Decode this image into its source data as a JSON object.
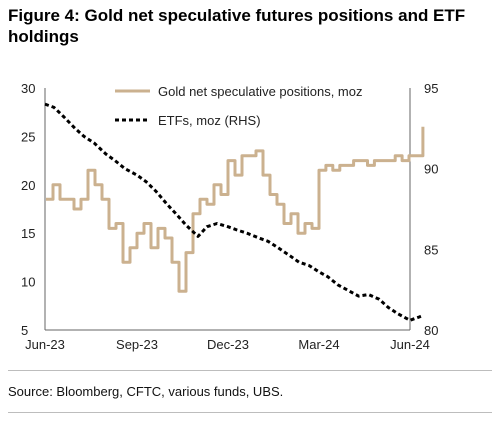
{
  "figure": {
    "title": "Figure 4: Gold net speculative futures positions and ETF holdings",
    "source": "Source: Bloomberg, CFTC, various funds, UBS."
  },
  "colors": {
    "speculative": "#cbb18f",
    "etf": "#000000",
    "axis": "#666666"
  },
  "chart_data": {
    "type": "line",
    "x_ticks": [
      "Jun-23",
      "Sep-23",
      "Dec-23",
      "Mar-24",
      "Jun-24"
    ],
    "y_left": {
      "min": 5,
      "max": 30,
      "ticks": [
        "5",
        "10",
        "15",
        "20",
        "25",
        "30"
      ]
    },
    "y_right": {
      "min": 80,
      "max": 95,
      "ticks": [
        "80",
        "85",
        "90",
        "95"
      ]
    },
    "legend": {
      "placement": "top-right"
    },
    "grid": false,
    "series": [
      {
        "name": "Gold net speculative positions, moz",
        "axis": "left",
        "style": "solid",
        "x": [
          "2023-06-02",
          "2023-06-09",
          "2023-06-16",
          "2023-06-23",
          "2023-06-30",
          "2023-07-07",
          "2023-07-14",
          "2023-07-21",
          "2023-07-28",
          "2023-08-04",
          "2023-08-11",
          "2023-08-18",
          "2023-08-25",
          "2023-09-01",
          "2023-09-08",
          "2023-09-15",
          "2023-09-22",
          "2023-09-29",
          "2023-10-06",
          "2023-10-13",
          "2023-10-20",
          "2023-10-27",
          "2023-11-03",
          "2023-11-10",
          "2023-11-17",
          "2023-11-24",
          "2023-12-01",
          "2023-12-08",
          "2023-12-15",
          "2023-12-22",
          "2023-12-29",
          "2024-01-05",
          "2024-01-12",
          "2024-01-19",
          "2024-01-26",
          "2024-02-02",
          "2024-02-09",
          "2024-02-16",
          "2024-02-23",
          "2024-03-01",
          "2024-03-08",
          "2024-03-15",
          "2024-03-22",
          "2024-03-29",
          "2024-04-05",
          "2024-04-12",
          "2024-04-19",
          "2024-04-26",
          "2024-05-03",
          "2024-05-10",
          "2024-05-17",
          "2024-05-24",
          "2024-05-31",
          "2024-06-07",
          "2024-06-14"
        ],
        "values": [
          18.5,
          20.0,
          18.5,
          18.5,
          17.5,
          18.5,
          21.5,
          20.0,
          18.5,
          15.5,
          16.0,
          12.0,
          13.5,
          15.0,
          16.0,
          13.5,
          15.5,
          14.5,
          12.0,
          9.0,
          13.0,
          17.0,
          18.5,
          18.0,
          20.0,
          19.0,
          22.5,
          21.0,
          23.0,
          23.0,
          23.5,
          21.0,
          19.0,
          18.0,
          16.0,
          17.0,
          15.0,
          16.0,
          15.5,
          21.5,
          22.0,
          21.5,
          22.0,
          22.0,
          22.5,
          22.5,
          22.0,
          22.5,
          22.5,
          22.5,
          23.0,
          22.5,
          23.0,
          23.0,
          26.0
        ]
      },
      {
        "name": "ETFs, moz (RHS)",
        "axis": "right",
        "style": "dashed",
        "x": [
          "2023-06-01",
          "2023-06-10",
          "2023-06-20",
          "2023-07-01",
          "2023-07-10",
          "2023-07-20",
          "2023-08-01",
          "2023-08-10",
          "2023-08-20",
          "2023-09-01",
          "2023-09-10",
          "2023-09-20",
          "2023-10-01",
          "2023-10-10",
          "2023-10-20",
          "2023-11-01",
          "2023-11-10",
          "2023-11-20",
          "2023-12-01",
          "2023-12-10",
          "2023-12-20",
          "2024-01-01",
          "2024-01-10",
          "2024-01-20",
          "2024-02-01",
          "2024-02-10",
          "2024-02-20",
          "2024-03-01",
          "2024-03-10",
          "2024-03-20",
          "2024-04-01",
          "2024-04-10",
          "2024-04-20",
          "2024-05-01",
          "2024-05-10",
          "2024-05-20",
          "2024-06-01",
          "2024-06-10",
          "2024-06-14"
        ],
        "values": [
          94.0,
          93.8,
          93.2,
          92.5,
          92.0,
          91.6,
          90.9,
          90.5,
          90.0,
          89.6,
          89.2,
          88.6,
          87.8,
          87.2,
          86.5,
          85.8,
          86.4,
          86.6,
          86.4,
          86.2,
          86.0,
          85.7,
          85.5,
          85.1,
          84.6,
          84.2,
          84.0,
          83.6,
          83.3,
          82.8,
          82.4,
          82.1,
          82.2,
          81.9,
          81.4,
          81.0,
          80.6,
          80.8,
          80.9
        ]
      }
    ]
  }
}
